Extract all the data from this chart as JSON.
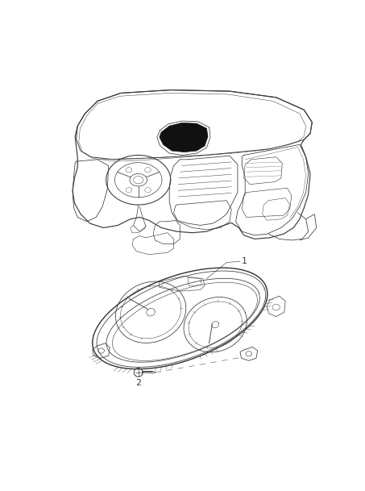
{
  "bg_color": "#ffffff",
  "line_color": "#3a3a3a",
  "line_width": 0.7,
  "part1_label": "1",
  "part2_label": "2",
  "figsize": [
    4.53,
    6.09
  ],
  "dpi": 100
}
